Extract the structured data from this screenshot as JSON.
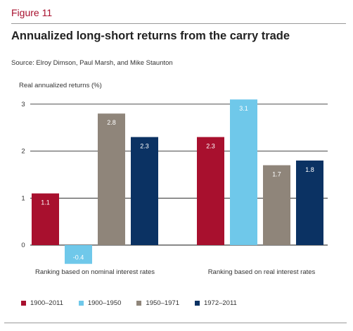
{
  "figure_label": "Figure 11",
  "title": "Annualized long-short returns from the carry trade",
  "source": "Source: Elroy Dimson, Paul Marsh, and Mike Staunton",
  "chart_data": {
    "type": "bar",
    "ylabel": "Real annualized returns (%)",
    "yticks": [
      "0",
      "1",
      "2",
      "3"
    ],
    "ylim": [
      -0.4,
      3
    ],
    "grid": true,
    "legend_position": "bottom",
    "categories": [
      "Ranking based on nominal interest rates",
      "Ranking based on real interest rates"
    ],
    "series": [
      {
        "name": "1900–2011",
        "color": "#a8102e",
        "values": [
          1.1,
          2.3
        ],
        "labels": [
          "1.1",
          "2.3"
        ]
      },
      {
        "name": "1900–1950",
        "color": "#6fc8ea",
        "values": [
          -0.4,
          3.1
        ],
        "labels": [
          "-0.4",
          "3.1"
        ]
      },
      {
        "name": "1950–1971",
        "color": "#8f857a",
        "values": [
          2.8,
          1.7
        ],
        "labels": [
          "2.8",
          "1.7"
        ]
      },
      {
        "name": "1972–2011",
        "color": "#0b3263",
        "values": [
          2.3,
          1.8
        ],
        "labels": [
          "2.3",
          "1.8"
        ]
      }
    ]
  }
}
